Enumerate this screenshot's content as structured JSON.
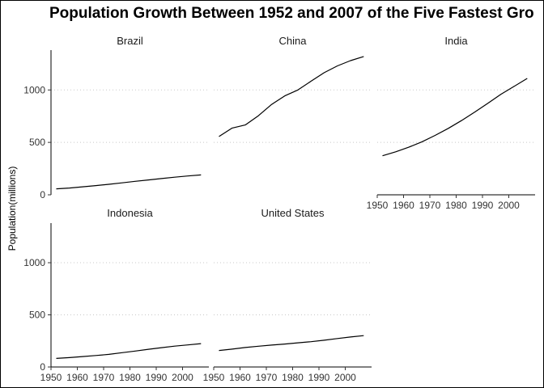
{
  "chart_data": {
    "type": "line",
    "title": "Population Growth Between 1952 and 2007 of the Five Fastest Gro",
    "xlabel": "",
    "ylabel": "Population(millions)",
    "xlim": [
      1950,
      2010
    ],
    "ylim": [
      0,
      1380
    ],
    "x_ticks": [
      1950,
      1960,
      1970,
      1980,
      1990,
      2000
    ],
    "y_ticks": [
      0,
      500,
      1000
    ],
    "grid": "horizontal dotted",
    "x": [
      1952,
      1957,
      1962,
      1967,
      1972,
      1977,
      1982,
      1987,
      1992,
      1997,
      2002,
      2007
    ],
    "panels": [
      {
        "name": "Brazil",
        "values": [
          57,
          65,
          76,
          88,
          100,
          114,
          129,
          142,
          155,
          168,
          180,
          190
        ]
      },
      {
        "name": "China",
        "values": [
          556,
          637,
          666,
          755,
          862,
          944,
          1000,
          1084,
          1165,
          1230,
          1280,
          1319
        ]
      },
      {
        "name": "India",
        "values": [
          372,
          410,
          454,
          506,
          567,
          634,
          708,
          788,
          872,
          959,
          1034,
          1110
        ]
      },
      {
        "name": "Indonesia",
        "values": [
          82,
          90,
          100,
          110,
          121,
          137,
          153,
          170,
          185,
          200,
          212,
          224
        ]
      },
      {
        "name": "United States",
        "values": [
          158,
          171,
          187,
          199,
          210,
          220,
          232,
          243,
          257,
          273,
          288,
          301
        ]
      }
    ]
  }
}
